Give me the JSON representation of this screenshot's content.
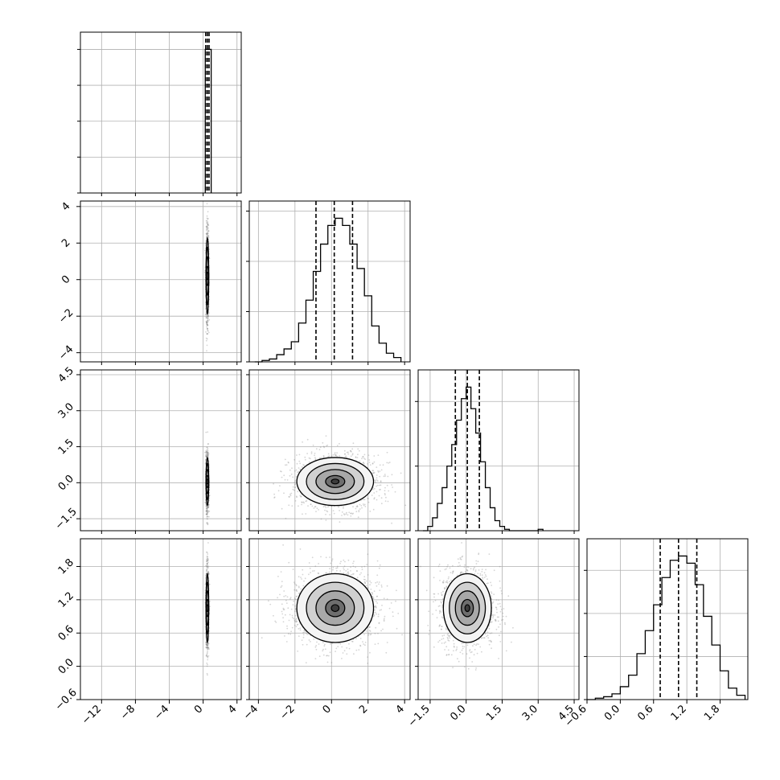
{
  "chart_data": {
    "type": "corner",
    "n_params": 4,
    "axes": [
      {
        "range": [
          -14.5,
          4.5
        ],
        "ticks": [
          -12,
          -8,
          -4,
          0,
          4
        ],
        "tick_labels": [
          "−12",
          "−8",
          "−4",
          "0",
          "4"
        ],
        "mean": 0.5,
        "std": 0.07,
        "quantiles": [
          0.3,
          0.5,
          0.7
        ]
      },
      {
        "range": [
          -4.5,
          4.3
        ],
        "ticks": [
          -4,
          -2,
          0,
          2,
          4
        ],
        "tick_labels": [
          "−4",
          "−2",
          "0",
          "2",
          "4"
        ],
        "mean": 0.2,
        "std": 1.05,
        "quantiles": [
          -0.85,
          0.15,
          1.15
        ]
      },
      {
        "range": [
          -2.0,
          4.7
        ],
        "ticks": [
          -1.5,
          0.0,
          1.5,
          3.0,
          4.5
        ],
        "tick_labels": [
          "−1.5",
          "0.0",
          "1.5",
          "3.0",
          "4.5"
        ],
        "mean": 0.05,
        "std": 0.5,
        "quantiles": [
          -0.45,
          0.05,
          0.55
        ]
      },
      {
        "range": [
          -0.6,
          2.3
        ],
        "ticks": [
          -0.6,
          0.0,
          0.6,
          1.2,
          1.8
        ],
        "tick_labels": [
          "−0.6",
          "0.0",
          "0.6",
          "1.2",
          "1.8"
        ],
        "mean": 1.05,
        "std": 0.31,
        "quantiles": [
          0.72,
          1.05,
          1.38
        ]
      }
    ],
    "histograms": [
      {
        "param": 0,
        "bin_edges": [
          0.25,
          0.55,
          0.95
        ],
        "counts": [
          1.0,
          1.0
        ],
        "yticks": [
          0,
          0.25,
          0.5,
          0.75,
          1.0
        ]
      },
      {
        "param": 1,
        "bin_edges": [
          -4.2,
          -3.8,
          -3.4,
          -3.0,
          -2.6,
          -2.2,
          -1.8,
          -1.4,
          -1.0,
          -0.6,
          -0.2,
          0.2,
          0.6,
          1.0,
          1.4,
          1.8,
          2.2,
          2.6,
          3.0,
          3.4,
          3.8
        ],
        "counts": [
          0.0,
          0.01,
          0.02,
          0.05,
          0.09,
          0.14,
          0.27,
          0.43,
          0.63,
          0.82,
          0.95,
          1.0,
          0.95,
          0.82,
          0.65,
          0.46,
          0.25,
          0.13,
          0.06,
          0.03
        ],
        "yticks": [
          0,
          0.35,
          0.7,
          1.05
        ]
      },
      {
        "param": 2,
        "bin_edges": [
          -1.8,
          -1.6,
          -1.4,
          -1.2,
          -1.0,
          -0.8,
          -0.6,
          -0.4,
          -0.2,
          0.0,
          0.2,
          0.4,
          0.6,
          0.8,
          1.0,
          1.2,
          1.4,
          1.6,
          1.8,
          3.0,
          3.2
        ],
        "counts": [
          0.0,
          0.03,
          0.09,
          0.19,
          0.3,
          0.45,
          0.6,
          0.77,
          0.92,
          1.0,
          0.85,
          0.68,
          0.48,
          0.3,
          0.16,
          0.07,
          0.03,
          0.01,
          0.0,
          0.01
        ],
        "yticks": [
          0,
          0.45,
          0.9
        ]
      },
      {
        "param": 3,
        "bin_edges": [
          -0.6,
          -0.45,
          -0.3,
          -0.15,
          0.0,
          0.15,
          0.3,
          0.45,
          0.6,
          0.75,
          0.9,
          1.05,
          1.2,
          1.35,
          1.5,
          1.65,
          1.8,
          1.95,
          2.1,
          2.25
        ],
        "counts": [
          0.0,
          0.01,
          0.02,
          0.04,
          0.09,
          0.17,
          0.32,
          0.48,
          0.66,
          0.85,
          0.97,
          1.0,
          0.95,
          0.8,
          0.58,
          0.38,
          0.2,
          0.08,
          0.03
        ],
        "yticks": [
          0,
          0.3,
          0.6,
          0.9
        ]
      }
    ],
    "colors": {
      "ink": "#000000",
      "grid": "#b0b0b0",
      "scatter": "#888888",
      "density_dark": "#3c3c3c",
      "density_light": "#e6e6e6"
    },
    "grid": true
  }
}
